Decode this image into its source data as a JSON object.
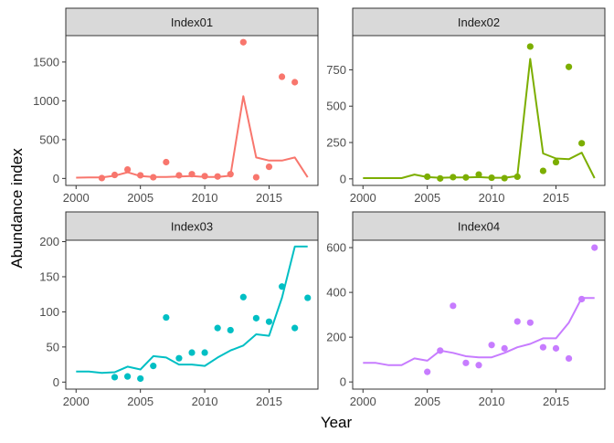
{
  "chart_data": {
    "type": "line",
    "layout": "facet-grid-2x2",
    "xlabel": "Year",
    "ylabel": "Abundance index",
    "grid": false,
    "panel_border": true,
    "legend": "none",
    "xlim": [
      1999.2,
      2018.8
    ],
    "x_ticks": [
      2000,
      2005,
      2010,
      2015
    ],
    "panels": [
      {
        "title": "Index01",
        "color": "#F8766D",
        "ylim": [
          -90,
          1840
        ],
        "y_ticks": [
          0,
          500,
          1000,
          1500
        ],
        "line": {
          "x": [
            2000,
            2001,
            2002,
            2003,
            2004,
            2005,
            2006,
            2007,
            2008,
            2009,
            2010,
            2011,
            2012,
            2013,
            2014,
            2015,
            2016,
            2017,
            2018
          ],
          "y": [
            10,
            12,
            14,
            35,
            80,
            30,
            18,
            20,
            25,
            30,
            20,
            20,
            35,
            1060,
            270,
            230,
            230,
            270,
            15
          ]
        },
        "points": {
          "x": [
            2002,
            2003,
            2004,
            2005,
            2006,
            2007,
            2008,
            2009,
            2010,
            2011,
            2012,
            2013,
            2014,
            2015,
            2016,
            2017
          ],
          "y": [
            5,
            45,
            115,
            40,
            15,
            210,
            40,
            55,
            30,
            25,
            55,
            1755,
            15,
            150,
            1310,
            1240
          ]
        }
      },
      {
        "title": "Index02",
        "color": "#7CAE00",
        "ylim": [
          -45,
          985
        ],
        "y_ticks": [
          0,
          250,
          500,
          750
        ],
        "line": {
          "x": [
            2000,
            2001,
            2002,
            2003,
            2004,
            2005,
            2006,
            2007,
            2008,
            2009,
            2010,
            2011,
            2012,
            2013,
            2014,
            2015,
            2016,
            2017,
            2018
          ],
          "y": [
            5,
            5,
            5,
            5,
            30,
            12,
            8,
            10,
            10,
            12,
            8,
            8,
            20,
            825,
            175,
            140,
            135,
            180,
            5
          ]
        },
        "points": {
          "x": [
            2005,
            2006,
            2007,
            2008,
            2009,
            2010,
            2011,
            2012,
            2013,
            2014,
            2015,
            2016,
            2017
          ],
          "y": [
            15,
            3,
            12,
            10,
            30,
            8,
            5,
            15,
            910,
            55,
            115,
            770,
            245
          ]
        }
      },
      {
        "title": "Index03",
        "color": "#00BFC4",
        "ylim": [
          -10,
          202
        ],
        "y_ticks": [
          0,
          50,
          100,
          150,
          200
        ],
        "line": {
          "x": [
            2000,
            2001,
            2002,
            2003,
            2004,
            2005,
            2006,
            2007,
            2008,
            2009,
            2010,
            2011,
            2012,
            2013,
            2014,
            2015,
            2016,
            2017,
            2018
          ],
          "y": [
            15,
            15,
            13,
            14,
            22,
            18,
            37,
            35,
            25,
            25,
            23,
            35,
            45,
            52,
            68,
            66,
            120,
            193,
            193
          ]
        },
        "points": {
          "x": [
            2003,
            2004,
            2005,
            2006,
            2007,
            2008,
            2009,
            2010,
            2011,
            2012,
            2013,
            2014,
            2015,
            2016,
            2017,
            2018
          ],
          "y": [
            7,
            8,
            5,
            23,
            92,
            34,
            42,
            42,
            77,
            74,
            121,
            91,
            86,
            136,
            77,
            120
          ]
        }
      },
      {
        "title": "Index04",
        "color": "#C77CFF",
        "ylim": [
          -32,
          633
        ],
        "y_ticks": [
          0,
          200,
          400,
          600
        ],
        "line": {
          "x": [
            2000,
            2001,
            2002,
            2003,
            2004,
            2005,
            2006,
            2007,
            2008,
            2009,
            2010,
            2011,
            2012,
            2013,
            2014,
            2015,
            2016,
            2017,
            2018
          ],
          "y": [
            85,
            85,
            75,
            75,
            105,
            95,
            140,
            130,
            115,
            110,
            110,
            130,
            155,
            170,
            195,
            195,
            265,
            375,
            375
          ]
        },
        "points": {
          "x": [
            2005,
            2006,
            2007,
            2008,
            2009,
            2010,
            2011,
            2012,
            2013,
            2014,
            2015,
            2016,
            2017,
            2018
          ],
          "y": [
            45,
            140,
            340,
            85,
            75,
            165,
            150,
            270,
            265,
            155,
            150,
            105,
            370,
            600
          ]
        }
      }
    ]
  }
}
